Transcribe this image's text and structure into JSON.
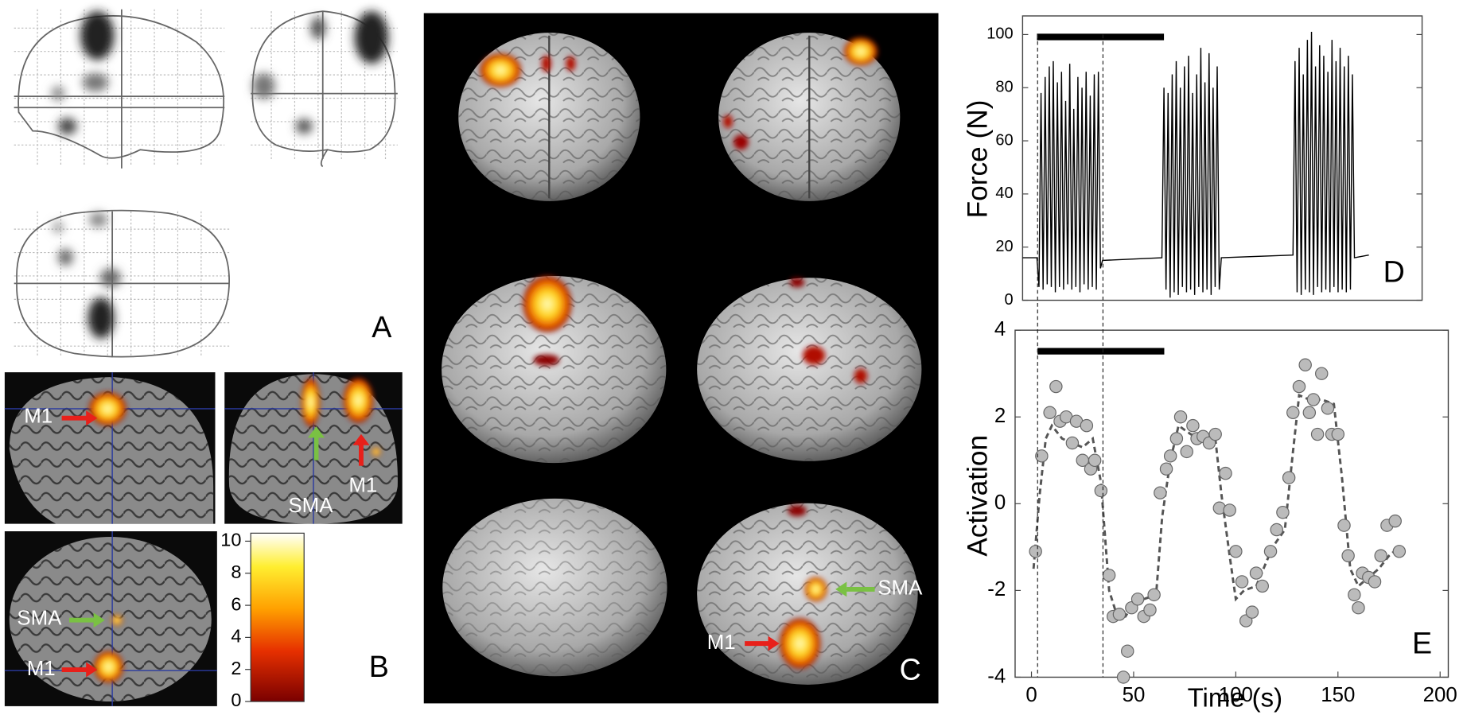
{
  "panels": {
    "A": {
      "label": "A"
    },
    "B": {
      "label": "B",
      "annotations": [
        "M1",
        "SMA",
        "M1",
        "SMA",
        "M1"
      ],
      "colorbar": {
        "lim": [
          0,
          10.5
        ],
        "ticks": [
          0,
          2,
          4,
          6,
          8,
          10
        ]
      }
    },
    "C": {
      "label": "C",
      "annotations": [
        "SMA",
        "M1"
      ]
    }
  },
  "chart_data": [
    {
      "type": "line",
      "label": "D",
      "ylabel": "Force (N)",
      "color": "#000000",
      "xlim": [
        -4,
        191
      ],
      "ylim": [
        0,
        107
      ],
      "yticks": [
        0,
        20,
        40,
        60,
        80,
        100
      ],
      "block": [
        3,
        65
      ],
      "x": [
        -4,
        3,
        4,
        5,
        6,
        7,
        8,
        9,
        10,
        11,
        12,
        13,
        14,
        15,
        16,
        17,
        18,
        19,
        20,
        21,
        22,
        23,
        24,
        25,
        26,
        27,
        28,
        29,
        30,
        31,
        32,
        33,
        34,
        35,
        64,
        65,
        66,
        67,
        68,
        69,
        70,
        71,
        72,
        73,
        74,
        75,
        76,
        77,
        78,
        79,
        80,
        81,
        82,
        83,
        84,
        85,
        86,
        87,
        88,
        89,
        90,
        91,
        92,
        93,
        128,
        129,
        130,
        131,
        132,
        133,
        134,
        135,
        136,
        137,
        138,
        139,
        140,
        141,
        142,
        143,
        144,
        145,
        146,
        147,
        148,
        149,
        150,
        151,
        152,
        153,
        154,
        155,
        156,
        157,
        158,
        165
      ],
      "values": [
        16,
        16,
        5,
        78,
        4,
        84,
        6,
        88,
        5,
        90,
        3,
        82,
        5,
        86,
        4,
        75,
        6,
        89,
        4,
        72,
        5,
        84,
        3,
        80,
        6,
        86,
        4,
        77,
        5,
        85,
        4,
        86,
        12,
        15,
        16,
        80,
        4,
        78,
        1,
        85,
        3,
        90,
        2,
        80,
        5,
        88,
        3,
        92,
        4,
        78,
        2,
        85,
        5,
        95,
        3,
        82,
        4,
        93,
        2,
        80,
        5,
        88,
        4,
        16,
        17,
        90,
        3,
        95,
        2,
        85,
        4,
        98,
        3,
        101,
        2,
        88,
        5,
        96,
        3,
        92,
        4,
        86,
        3,
        98,
        5,
        90,
        3,
        95,
        4,
        88,
        3,
        92,
        4,
        85,
        16,
        17
      ]
    },
    {
      "type": "scatter",
      "label": "E",
      "xlabel": "Time (s)",
      "ylabel": "Activation",
      "color": "#bbbbbb",
      "xlim": [
        -8,
        204
      ],
      "ylim": [
        -4,
        4
      ],
      "xticks": [
        0,
        50,
        100,
        150,
        200
      ],
      "yticks": [
        -4,
        -2,
        0,
        2,
        4
      ],
      "block": [
        3,
        65
      ],
      "dashed_x": [
        3,
        35
      ],
      "x": [
        2,
        5,
        9,
        12,
        14,
        17,
        20,
        22,
        25,
        27,
        29,
        31,
        34,
        38,
        40,
        43,
        45,
        47,
        49,
        52,
        55,
        58,
        60,
        63,
        66,
        68,
        71,
        73,
        76,
        79,
        81,
        84,
        87,
        90,
        92,
        95,
        97,
        100,
        103,
        105,
        108,
        110,
        113,
        117,
        120,
        123,
        126,
        128,
        131,
        134,
        136,
        138,
        140,
        142,
        145,
        147,
        150,
        153,
        155,
        158,
        160,
        162,
        165,
        168,
        171,
        174,
        178,
        180
      ],
      "values": [
        -1.1,
        1.1,
        2.1,
        2.7,
        1.9,
        2.0,
        1.4,
        1.9,
        1.0,
        1.8,
        0.8,
        1.0,
        0.3,
        -1.65,
        -2.6,
        -2.55,
        -4.0,
        -3.4,
        -2.4,
        -2.2,
        -2.6,
        -2.45,
        -2.1,
        0.25,
        0.8,
        1.1,
        1.5,
        2.0,
        1.2,
        1.8,
        1.5,
        1.55,
        1.4,
        1.6,
        -0.1,
        0.7,
        -0.15,
        -1.1,
        -1.8,
        -2.7,
        -2.5,
        -1.6,
        -1.9,
        -1.1,
        -0.6,
        -0.2,
        0.6,
        2.1,
        2.7,
        3.2,
        2.1,
        2.4,
        1.6,
        3.0,
        2.2,
        1.6,
        1.6,
        -0.5,
        -1.2,
        -2.1,
        -2.4,
        -1.6,
        -1.7,
        -1.8,
        -1.2,
        -0.5,
        -0.4,
        -1.1
      ],
      "fit_x": [
        1,
        4,
        7,
        10,
        15,
        20,
        25,
        30,
        34,
        38,
        42,
        46,
        50,
        55,
        61,
        64,
        68,
        72,
        78,
        84,
        90,
        93,
        97,
        100,
        104,
        110,
        118,
        124,
        128,
        131,
        136,
        142,
        148,
        152,
        156,
        160,
        165,
        170,
        175,
        180
      ],
      "fit_values": [
        -1.5,
        0.2,
        1.5,
        1.8,
        1.5,
        1.4,
        1.3,
        1.5,
        0.5,
        -2.0,
        -2.6,
        -2.6,
        -2.3,
        -2.2,
        -2.1,
        -0.3,
        1.0,
        1.8,
        1.6,
        1.5,
        1.5,
        0.2,
        -1.2,
        -2.2,
        -2.0,
        -1.9,
        -1.0,
        -0.6,
        1.2,
        2.5,
        2.4,
        2.4,
        2.3,
        0.6,
        -1.5,
        -1.9,
        -1.7,
        -1.5,
        -1.2,
        -1.0
      ]
    }
  ]
}
